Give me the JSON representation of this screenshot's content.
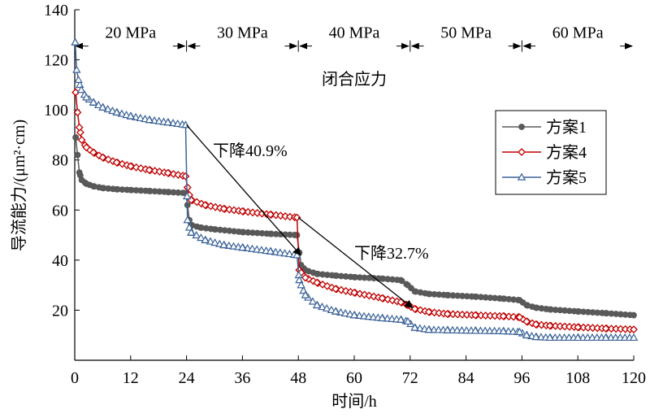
{
  "chart_data": {
    "type": "line",
    "xlabel": "时间/h",
    "ylabel": "导流能力/(μm²·cm)",
    "xlim": [
      0,
      120
    ],
    "ylim": [
      0,
      140
    ],
    "xticks": [
      0,
      12,
      24,
      36,
      48,
      60,
      72,
      84,
      96,
      108,
      120
    ],
    "yticks": [
      20,
      40,
      60,
      80,
      100,
      120,
      140
    ],
    "grid": false,
    "legend_position": "right",
    "stages": [
      {
        "label": "20 MPa",
        "x": [
          0,
          24
        ]
      },
      {
        "label": "30 MPa",
        "x": [
          24,
          48
        ]
      },
      {
        "label": "40 MPa",
        "x": [
          48,
          72
        ]
      },
      {
        "label": "50 MPa",
        "x": [
          72,
          96
        ]
      },
      {
        "label": "60 MPa",
        "x": [
          96,
          120
        ]
      }
    ],
    "stage_axis_label": "闭合应力",
    "annotations": [
      {
        "text": "下降40.9%",
        "from": [
          24,
          94
        ],
        "to": [
          48.5,
          42
        ]
      },
      {
        "text": "下降32.7%",
        "from": [
          48,
          57
        ],
        "to": [
          72.5,
          21
        ]
      }
    ],
    "series": [
      {
        "name": "方案1",
        "color": "#595959",
        "marker": "circle",
        "points": [
          [
            0.2,
            89
          ],
          [
            0.6,
            82
          ],
          [
            1.0,
            75
          ],
          [
            1.5,
            72
          ],
          [
            2.5,
            70.5
          ],
          [
            4,
            69.5
          ],
          [
            6,
            68.8
          ],
          [
            9,
            68.3
          ],
          [
            12,
            68
          ],
          [
            16,
            67.6
          ],
          [
            20,
            67.2
          ],
          [
            23.8,
            66.8
          ],
          [
            24.2,
            62
          ],
          [
            24.6,
            56
          ],
          [
            25,
            54
          ],
          [
            27,
            53
          ],
          [
            30,
            52.3
          ],
          [
            36,
            51.2
          ],
          [
            42,
            50.5
          ],
          [
            47.7,
            50
          ],
          [
            48.2,
            43
          ],
          [
            48.6,
            38
          ],
          [
            49.5,
            36
          ],
          [
            52,
            34.5
          ],
          [
            56,
            33.8
          ],
          [
            60,
            33.2
          ],
          [
            66,
            32.6
          ],
          [
            70,
            32
          ],
          [
            71.5,
            30
          ],
          [
            73,
            27.5
          ],
          [
            76,
            26.5
          ],
          [
            80,
            26
          ],
          [
            86,
            25.4
          ],
          [
            92,
            24.6
          ],
          [
            95.5,
            24
          ],
          [
            97,
            22
          ],
          [
            99,
            21
          ],
          [
            102,
            20.3
          ],
          [
            108,
            19.5
          ],
          [
            114,
            18.8
          ],
          [
            120,
            18
          ]
        ]
      },
      {
        "name": "方案4",
        "color": "#c00000",
        "marker": "diamond",
        "points": [
          [
            0.2,
            107
          ],
          [
            0.6,
            99
          ],
          [
            1.0,
            93
          ],
          [
            1.5,
            88
          ],
          [
            2.5,
            85
          ],
          [
            4,
            83
          ],
          [
            6,
            81
          ],
          [
            9,
            79
          ],
          [
            12,
            77.5
          ],
          [
            16,
            76
          ],
          [
            20,
            74.8
          ],
          [
            23.8,
            73.5
          ],
          [
            24.2,
            69
          ],
          [
            24.6,
            66
          ],
          [
            25,
            64
          ],
          [
            28,
            62
          ],
          [
            32,
            60.5
          ],
          [
            36,
            59.5
          ],
          [
            42,
            58.2
          ],
          [
            47.7,
            57
          ],
          [
            48.2,
            36
          ],
          [
            48.6,
            35
          ],
          [
            49.5,
            33
          ],
          [
            52,
            31
          ],
          [
            56,
            28.5
          ],
          [
            60,
            27
          ],
          [
            66,
            24.8
          ],
          [
            70,
            23.2
          ],
          [
            71.5,
            22
          ],
          [
            73,
            20.5
          ],
          [
            76,
            19.3
          ],
          [
            80,
            18.5
          ],
          [
            86,
            18
          ],
          [
            92,
            17.6
          ],
          [
            95.5,
            17.2
          ],
          [
            97,
            15.5
          ],
          [
            99,
            14.3
          ],
          [
            102,
            13.8
          ],
          [
            108,
            13.2
          ],
          [
            114,
            12.7
          ],
          [
            120,
            12.3
          ]
        ]
      },
      {
        "name": "方案5",
        "color": "#3a6298",
        "marker": "triangle",
        "points": [
          [
            0.1,
            127
          ],
          [
            0.4,
            116
          ],
          [
            0.8,
            112
          ],
          [
            1.4,
            108
          ],
          [
            2.5,
            105
          ],
          [
            4,
            103
          ],
          [
            6,
            101
          ],
          [
            9,
            99
          ],
          [
            12,
            97.5
          ],
          [
            16,
            96
          ],
          [
            20,
            95
          ],
          [
            23.8,
            94
          ],
          [
            24.2,
            56
          ],
          [
            24.6,
            53
          ],
          [
            25,
            51
          ],
          [
            28,
            48
          ],
          [
            32,
            46
          ],
          [
            36,
            45
          ],
          [
            42,
            43.5
          ],
          [
            47.7,
            42
          ],
          [
            48.2,
            32
          ],
          [
            48.6,
            30
          ],
          [
            49.5,
            26
          ],
          [
            52,
            22
          ],
          [
            56,
            19.5
          ],
          [
            60,
            18
          ],
          [
            66,
            16.8
          ],
          [
            70,
            16.2
          ],
          [
            71.5,
            15.5
          ],
          [
            73,
            13
          ],
          [
            76,
            12.2
          ],
          [
            80,
            12
          ],
          [
            86,
            11.8
          ],
          [
            92,
            11.6
          ],
          [
            95.5,
            11.3
          ],
          [
            97,
            10
          ],
          [
            99,
            9.3
          ],
          [
            102,
            9
          ],
          [
            108,
            9
          ],
          [
            114,
            9
          ],
          [
            120,
            9
          ]
        ]
      }
    ]
  }
}
